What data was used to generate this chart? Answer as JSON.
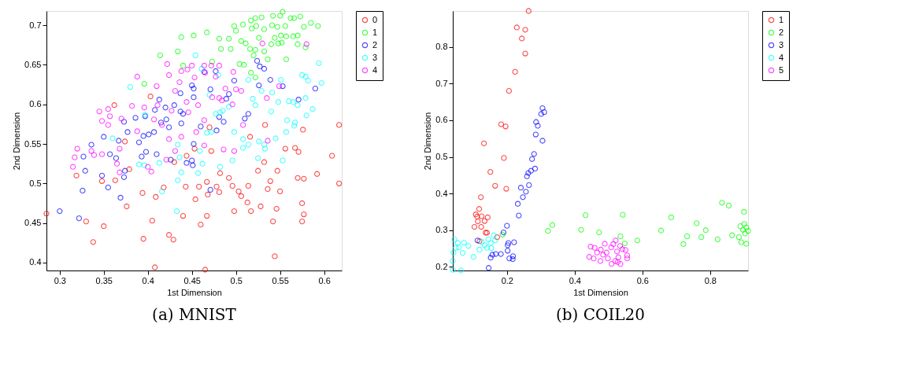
{
  "chart_data": [
    {
      "type": "scatter",
      "xlabel": "1st Dimension",
      "ylabel": "2nd Dimension",
      "annotations": [
        "(a) MNIST"
      ],
      "xlim": [
        0.285,
        0.62
      ],
      "ylim": [
        0.39,
        0.718
      ],
      "xticks": [
        0.3,
        0.35,
        0.4,
        0.45,
        0.5,
        0.55,
        0.6
      ],
      "yticks": [
        0.4,
        0.45,
        0.5,
        0.55,
        0.6,
        0.65,
        0.7
      ],
      "grid": false,
      "legend": "right",
      "marker": "circle",
      "series": [
        {
          "name": "0",
          "color": "#ff0000",
          "x": [
            0.285,
            0.319,
            0.35,
            0.338,
            0.33,
            0.348,
            0.363,
            0.362,
            0.374,
            0.379,
            0.376,
            0.394,
            0.395,
            0.409,
            0.405,
            0.408,
            0.403,
            0.418,
            0.424,
            0.429,
            0.43,
            0.443,
            0.44,
            0.444,
            0.453,
            0.454,
            0.458,
            0.46,
            0.465,
            0.467,
            0.467,
            0.468,
            0.47,
            0.472,
            0.478,
            0.481,
            0.482,
            0.492,
            0.496,
            0.498,
            0.503,
            0.506,
            0.513,
            0.514,
            0.516,
            0.517,
            0.528,
            0.525,
            0.532,
            0.533,
            0.536,
            0.539,
            0.546,
            0.542,
            0.544,
            0.547,
            0.55,
            0.556,
            0.567,
            0.571,
            0.57,
            0.577,
            0.575,
            0.577,
            0.575,
            0.576,
            0.592,
            0.609,
            0.617,
            0.617
          ],
          "values": [
            0.462,
            0.51,
            0.446,
            0.426,
            0.452,
            0.503,
            0.504,
            0.599,
            0.553,
            0.518,
            0.471,
            0.488,
            0.43,
            0.483,
            0.453,
            0.394,
            0.61,
            0.495,
            0.435,
            0.429,
            0.527,
            0.496,
            0.459,
            0.535,
            0.544,
            0.48,
            0.496,
            0.448,
            0.391,
            0.459,
            0.502,
            0.486,
            0.571,
            0.541,
            0.496,
            0.489,
            0.513,
            0.507,
            0.497,
            0.465,
            0.49,
            0.484,
            0.476,
            0.497,
            0.559,
            0.465,
            0.471,
            0.516,
            0.527,
            0.574,
            0.493,
            0.503,
            0.468,
            0.452,
            0.408,
            0.516,
            0.49,
            0.544,
            0.545,
            0.54,
            0.507,
            0.506,
            0.475,
            0.461,
            0.452,
            0.568,
            0.512,
            0.535,
            0.574,
            0.5
          ]
        },
        {
          "name": "1",
          "color": "#00ff00",
          "x": [
            0.414,
            0.438,
            0.434,
            0.44,
            0.452,
            0.467,
            0.473,
            0.481,
            0.483,
            0.494,
            0.492,
            0.498,
            0.5,
            0.508,
            0.506,
            0.511,
            0.504,
            0.509,
            0.517,
            0.522,
            0.529,
            0.523,
            0.518,
            0.526,
            0.532,
            0.516,
            0.522,
            0.532,
            0.52,
            0.517,
            0.522,
            0.536,
            0.542,
            0.55,
            0.553,
            0.541,
            0.547,
            0.544,
            0.551,
            0.556,
            0.562,
            0.566,
            0.573,
            0.577,
            0.57,
            0.565,
            0.557,
            0.552,
            0.548,
            0.54,
            0.57,
            0.579,
            0.585,
            0.593,
            0.557,
            0.396
          ],
          "values": [
            0.662,
            0.685,
            0.667,
            0.649,
            0.687,
            0.691,
            0.654,
            0.683,
            0.67,
            0.67,
            0.683,
            0.699,
            0.693,
            0.701,
            0.68,
            0.677,
            0.651,
            0.65,
            0.706,
            0.709,
            0.71,
            0.699,
            0.696,
            0.684,
            0.695,
            0.67,
            0.669,
            0.667,
            0.662,
            0.64,
            0.634,
            0.657,
            0.712,
            0.712,
            0.717,
            0.7,
            0.698,
            0.684,
            0.687,
            0.699,
            0.709,
            0.709,
            0.711,
            0.698,
            0.687,
            0.686,
            0.686,
            0.678,
            0.677,
            0.676,
            0.676,
            0.672,
            0.703,
            0.699,
            0.657,
            0.626
          ]
        },
        {
          "name": "2",
          "color": "#0000ff",
          "x": [
            0.3,
            0.322,
            0.326,
            0.329,
            0.327,
            0.336,
            0.348,
            0.35,
            0.355,
            0.357,
            0.364,
            0.367,
            0.369,
            0.373,
            0.374,
            0.373,
            0.377,
            0.386,
            0.39,
            0.393,
            0.395,
            0.397,
            0.398,
            0.401,
            0.407,
            0.408,
            0.41,
            0.413,
            0.415,
            0.42,
            0.421,
            0.424,
            0.43,
            0.438,
            0.437,
            0.437,
            0.44,
            0.45,
            0.452,
            0.452,
            0.452,
            0.45,
            0.451,
            0.444,
            0.426,
            0.46,
            0.464,
            0.471,
            0.477,
            0.478,
            0.481,
            0.486,
            0.489,
            0.492,
            0.498,
            0.51,
            0.514,
            0.524,
            0.527,
            0.532,
            0.526,
            0.539,
            0.553,
            0.571,
            0.59,
            0.471
          ],
          "values": [
            0.465,
            0.456,
            0.491,
            0.516,
            0.534,
            0.549,
            0.51,
            0.559,
            0.495,
            0.537,
            0.532,
            0.554,
            0.482,
            0.508,
            0.516,
            0.578,
            0.565,
            0.583,
            0.552,
            0.534,
            0.56,
            0.585,
            0.54,
            0.562,
            0.565,
            0.593,
            0.537,
            0.606,
            0.577,
            0.596,
            0.581,
            0.571,
            0.599,
            0.576,
            0.614,
            0.591,
            0.588,
            0.624,
            0.62,
            0.609,
            0.55,
            0.529,
            0.523,
            0.526,
            0.53,
            0.572,
            0.641,
            0.619,
            0.642,
            0.567,
            0.584,
            0.578,
            0.607,
            0.613,
            0.63,
            0.582,
            0.588,
            0.655,
            0.648,
            0.645,
            0.624,
            0.631,
            0.623,
            0.606,
            0.62,
            0.492
          ]
        },
        {
          "name": "3",
          "color": "#00ffff",
          "x": [
            0.38,
            0.36,
            0.39,
            0.396,
            0.397,
            0.413,
            0.416,
            0.433,
            0.434,
            0.436,
            0.438,
            0.434,
            0.454,
            0.461,
            0.457,
            0.459,
            0.462,
            0.467,
            0.472,
            0.47,
            0.477,
            0.482,
            0.485,
            0.48,
            0.482,
            0.492,
            0.496,
            0.498,
            0.508,
            0.508,
            0.514,
            0.514,
            0.519,
            0.522,
            0.529,
            0.526,
            0.525,
            0.532,
            0.533,
            0.541,
            0.54,
            0.545,
            0.548,
            0.551,
            0.553,
            0.557,
            0.56,
            0.565,
            0.57,
            0.566,
            0.567,
            0.575,
            0.579,
            0.579,
            0.582,
            0.58,
            0.587,
            0.594,
            0.597,
            0.558
          ],
          "values": [
            0.622,
            0.557,
            0.524,
            0.523,
            0.587,
            0.526,
            0.49,
            0.465,
            0.504,
            0.533,
            0.514,
            0.549,
            0.662,
            0.645,
            0.513,
            0.541,
            0.525,
            0.564,
            0.565,
            0.612,
            0.588,
            0.59,
            0.592,
            0.637,
            0.521,
            0.597,
            0.529,
            0.565,
            0.556,
            0.545,
            0.549,
            0.631,
            0.607,
            0.599,
            0.617,
            0.553,
            0.532,
            0.549,
            0.544,
            0.615,
            0.591,
            0.557,
            0.603,
            0.631,
            0.529,
            0.565,
            0.604,
            0.603,
            0.599,
            0.573,
            0.577,
            0.637,
            0.635,
            0.608,
            0.63,
            0.586,
            0.594,
            0.652,
            0.627,
            0.58
          ]
        },
        {
          "name": "4",
          "color": "#ff00ff",
          "x": [
            0.315,
            0.32,
            0.317,
            0.336,
            0.339,
            0.345,
            0.348,
            0.355,
            0.357,
            0.355,
            0.348,
            0.368,
            0.37,
            0.365,
            0.368,
            0.382,
            0.388,
            0.388,
            0.396,
            0.4,
            0.404,
            0.407,
            0.41,
            0.411,
            0.416,
            0.421,
            0.422,
            0.424,
            0.424,
            0.427,
            0.431,
            0.436,
            0.438,
            0.431,
            0.438,
            0.444,
            0.445,
            0.446,
            0.45,
            0.453,
            0.455,
            0.457,
            0.464,
            0.465,
            0.464,
            0.464,
            0.472,
            0.473,
            0.477,
            0.481,
            0.481,
            0.484,
            0.486,
            0.488,
            0.496,
            0.497,
            0.498,
            0.506,
            0.508,
            0.5,
            0.53,
            0.535,
            0.536,
            0.549,
            0.58
          ],
          "values": [
            0.521,
            0.544,
            0.533,
            0.541,
            0.536,
            0.591,
            0.579,
            0.594,
            0.585,
            0.574,
            0.537,
            0.544,
            0.582,
            0.525,
            0.514,
            0.598,
            0.635,
            0.566,
            0.596,
            0.521,
            0.515,
            0.581,
            0.623,
            0.599,
            0.574,
            0.53,
            0.651,
            0.637,
            0.556,
            0.592,
            0.617,
            0.628,
            0.642,
            0.541,
            0.559,
            0.603,
            0.644,
            0.59,
            0.649,
            0.634,
            0.565,
            0.599,
            0.649,
            0.64,
            0.58,
            0.548,
            0.649,
            0.609,
            0.635,
            0.649,
            0.608,
            0.605,
            0.543,
            0.62,
            0.6,
            0.641,
            0.541,
            0.617,
            0.574,
            0.619,
            0.677,
            0.608,
            0.554,
            0.623,
            0.676
          ]
        }
      ]
    },
    {
      "type": "scatter",
      "xlabel": "1st Dimension",
      "ylabel": "2nd Dimension",
      "annotations": [
        "(b) COIL20"
      ],
      "xlim": [
        0.04,
        0.912
      ],
      "ylim": [
        0.19,
        0.898
      ],
      "xticks": [
        0.2,
        0.4,
        0.6,
        0.8
      ],
      "yticks": [
        0.2,
        0.3,
        0.4,
        0.5,
        0.6,
        0.7,
        0.8
      ],
      "grid": false,
      "legend": "right",
      "marker": "circle",
      "series": [
        {
          "name": "1",
          "color": "#ff0000",
          "x": [
            0.264,
            0.229,
            0.254,
            0.244,
            0.254,
            0.224,
            0.206,
            0.183,
            0.196,
            0.132,
            0.191,
            0.151,
            0.165,
            0.198,
            0.123,
            0.118,
            0.108,
            0.112,
            0.125,
            0.143,
            0.134,
            0.114,
            0.104,
            0.124,
            0.137,
            0.141,
            0.119,
            0.171
          ],
          "values": [
            0.898,
            0.853,
            0.847,
            0.823,
            0.782,
            0.732,
            0.68,
            0.589,
            0.583,
            0.537,
            0.497,
            0.459,
            0.421,
            0.413,
            0.39,
            0.358,
            0.343,
            0.337,
            0.338,
            0.335,
            0.325,
            0.324,
            0.309,
            0.309,
            0.293,
            0.293,
            0.27,
            0.281
          ]
        },
        {
          "name": "2",
          "color": "#00ff00",
          "x": [
            0.187,
            0.321,
            0.334,
            0.419,
            0.432,
            0.472,
            0.535,
            0.548,
            0.542,
            0.585,
            0.655,
            0.685,
            0.721,
            0.732,
            0.76,
            0.774,
            0.787,
            0.822,
            0.835,
            0.855,
            0.865,
            0.885,
            0.889,
            0.9,
            0.897,
            0.907,
            0.903,
            0.892,
            0.907,
            0.912,
            0.901
          ],
          "values": [
            0.288,
            0.298,
            0.314,
            0.301,
            0.341,
            0.294,
            0.283,
            0.264,
            0.342,
            0.272,
            0.299,
            0.335,
            0.262,
            0.283,
            0.319,
            0.281,
            0.3,
            0.275,
            0.375,
            0.367,
            0.286,
            0.281,
            0.311,
            0.35,
            0.301,
            0.307,
            0.291,
            0.267,
            0.263,
            0.298,
            0.317
          ]
        },
        {
          "name": "3",
          "color": "#0000ff",
          "x": [
            0.305,
            0.301,
            0.31,
            0.286,
            0.291,
            0.285,
            0.305,
            0.28,
            0.274,
            0.283,
            0.271,
            0.263,
            0.259,
            0.265,
            0.241,
            0.256,
            0.247,
            0.232,
            0.235,
            0.2,
            0.19,
            0.204,
            0.202,
            0.221,
            0.202,
            0.207,
            0.217,
            0.218,
            0.152,
            0.157,
            0.167,
            0.182,
            0.146,
            0.113
          ],
          "values": [
            0.633,
            0.617,
            0.622,
            0.595,
            0.585,
            0.561,
            0.544,
            0.508,
            0.494,
            0.468,
            0.462,
            0.456,
            0.447,
            0.423,
            0.416,
            0.405,
            0.39,
            0.372,
            0.34,
            0.312,
            0.294,
            0.265,
            0.244,
            0.267,
            0.259,
            0.223,
            0.221,
            0.229,
            0.225,
            0.233,
            0.235,
            0.235,
            0.197,
            0.272
          ]
        },
        {
          "name": "4",
          "color": "#00ffff",
          "x": [
            0.045,
            0.04,
            0.04,
            0.064,
            0.049,
            0.055,
            0.069,
            0.073,
            0.086,
            0.101,
            0.119,
            0.126,
            0.134,
            0.141,
            0.145,
            0.152,
            0.154,
            0.161,
            0.165,
            0.042,
            0.058
          ],
          "values": [
            0.275,
            0.216,
            0.192,
            0.19,
            0.252,
            0.265,
            0.238,
            0.266,
            0.257,
            0.227,
            0.247,
            0.268,
            0.259,
            0.252,
            0.275,
            0.265,
            0.251,
            0.286,
            0.272,
            0.239,
            0.253
          ]
        },
        {
          "name": "5",
          "color": "#ff00ff",
          "x": [
            0.447,
            0.443,
            0.456,
            0.459,
            0.466,
            0.476,
            0.477,
            0.484,
            0.489,
            0.494,
            0.498,
            0.509,
            0.508,
            0.514,
            0.521,
            0.525,
            0.529,
            0.534,
            0.535,
            0.541,
            0.55,
            0.555,
            0.555,
            0.52,
            0.527
          ],
          "values": [
            0.255,
            0.227,
            0.223,
            0.252,
            0.239,
            0.216,
            0.247,
            0.233,
            0.263,
            0.239,
            0.223,
            0.208,
            0.253,
            0.262,
            0.272,
            0.242,
            0.226,
            0.257,
            0.208,
            0.248,
            0.246,
            0.231,
            0.223,
            0.216,
            0.213
          ]
        }
      ]
    }
  ]
}
